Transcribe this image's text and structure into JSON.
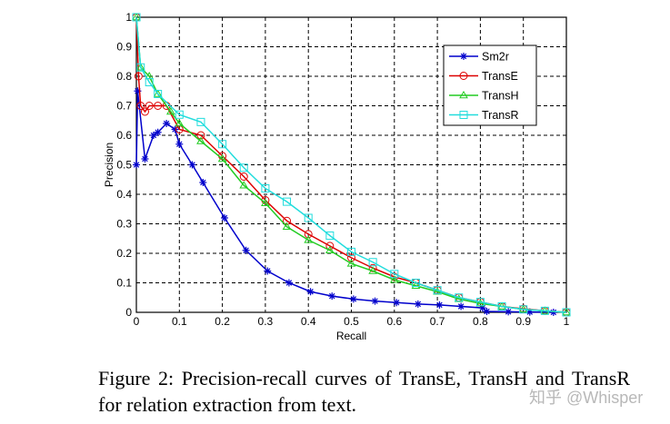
{
  "chart_data": {
    "type": "line",
    "xlabel": "Recall",
    "ylabel": "Precision",
    "xlim": [
      0,
      1
    ],
    "ylim": [
      0,
      1
    ],
    "xticks": [
      "0",
      "0.1",
      "0.2",
      "0.3",
      "0.4",
      "0.5",
      "0.6",
      "0.7",
      "0.8",
      "0.9",
      "1"
    ],
    "yticks": [
      "0",
      "0.1",
      "0.2",
      "0.3",
      "0.4",
      "0.5",
      "0.6",
      "0.7",
      "0.8",
      "0.9",
      "1"
    ],
    "grid": true,
    "legend_position": "top-right",
    "series": [
      {
        "name": "Sm2r",
        "color": "#0000cc",
        "marker": "asterisk",
        "x": [
          0,
          0.003,
          0.02,
          0.04,
          0.05,
          0.07,
          0.09,
          0.1,
          0.13,
          0.155,
          0.205,
          0.255,
          0.305,
          0.355,
          0.405,
          0.455,
          0.505,
          0.555,
          0.605,
          0.655,
          0.705,
          0.755,
          0.805,
          0.815,
          0.865,
          0.915,
          0.97
        ],
        "y": [
          0.5,
          0.75,
          0.52,
          0.6,
          0.61,
          0.64,
          0.62,
          0.57,
          0.5,
          0.44,
          0.32,
          0.21,
          0.14,
          0.1,
          0.07,
          0.055,
          0.045,
          0.038,
          0.033,
          0.028,
          0.025,
          0.02,
          0.015,
          0.003,
          0.002,
          0.001,
          0
        ]
      },
      {
        "name": "TransE",
        "color": "#dd0000",
        "marker": "circle",
        "x": [
          0,
          0.005,
          0.01,
          0.02,
          0.03,
          0.05,
          0.07,
          0.1,
          0.15,
          0.2,
          0.25,
          0.3,
          0.35,
          0.4,
          0.45,
          0.5,
          0.55,
          0.6,
          0.65,
          0.7,
          0.75,
          0.8,
          0.85,
          0.9,
          0.95,
          1
        ],
        "y": [
          1,
          0.8,
          0.7,
          0.68,
          0.7,
          0.7,
          0.7,
          0.62,
          0.6,
          0.53,
          0.46,
          0.38,
          0.31,
          0.265,
          0.225,
          0.185,
          0.15,
          0.12,
          0.1,
          0.075,
          0.05,
          0.035,
          0.02,
          0.012,
          0.005,
          0
        ]
      },
      {
        "name": "TransH",
        "color": "#22cc22",
        "marker": "triangle",
        "x": [
          0,
          0.01,
          0.03,
          0.05,
          0.08,
          0.1,
          0.15,
          0.2,
          0.25,
          0.3,
          0.35,
          0.4,
          0.45,
          0.5,
          0.55,
          0.6,
          0.65,
          0.7,
          0.75,
          0.8,
          0.85,
          0.9,
          0.95,
          1
        ],
        "y": [
          1,
          0.83,
          0.8,
          0.74,
          0.68,
          0.64,
          0.58,
          0.52,
          0.43,
          0.37,
          0.29,
          0.245,
          0.21,
          0.165,
          0.14,
          0.11,
          0.09,
          0.07,
          0.045,
          0.03,
          0.02,
          0.01,
          0.005,
          0
        ]
      },
      {
        "name": "TransR",
        "color": "#22dddd",
        "marker": "square",
        "x": [
          0,
          0.01,
          0.03,
          0.05,
          0.1,
          0.15,
          0.2,
          0.25,
          0.3,
          0.35,
          0.4,
          0.45,
          0.5,
          0.55,
          0.6,
          0.65,
          0.7,
          0.75,
          0.8,
          0.85,
          0.9,
          0.95,
          1
        ],
        "y": [
          1,
          0.83,
          0.78,
          0.74,
          0.67,
          0.645,
          0.57,
          0.49,
          0.42,
          0.375,
          0.32,
          0.26,
          0.205,
          0.17,
          0.13,
          0.1,
          0.075,
          0.05,
          0.035,
          0.02,
          0.01,
          0.005,
          0
        ]
      }
    ]
  },
  "caption": "Figure 2: Precision-recall curves of TransE, TransH and TransR for relation extraction from text.",
  "watermark": "知乎 @Whisper"
}
